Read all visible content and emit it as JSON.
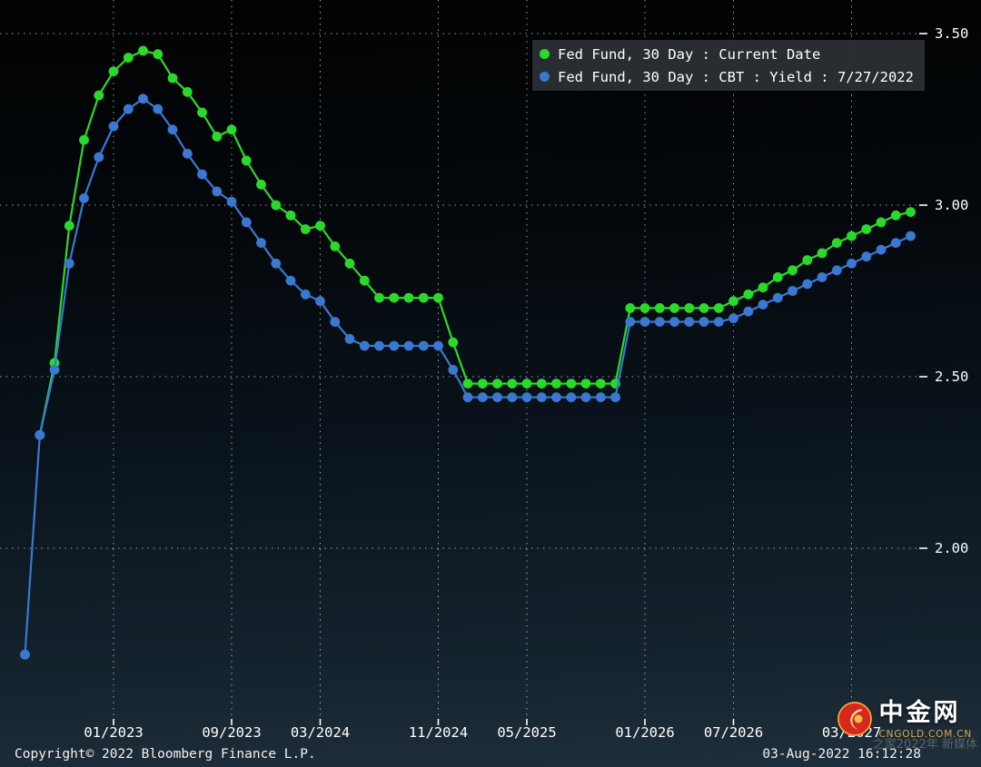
{
  "footer": {
    "copyright": "Copyright© 2022 Bloomberg Finance L.P.",
    "timestamp": "03-Aug-2022 16:12:28"
  },
  "watermark": {
    "name": "中金网",
    "domain": "CNGOLD.COM.CN",
    "tagline": "之家2022年 新媒体"
  },
  "chart_data": {
    "type": "line",
    "x_start": "07/2022",
    "x_months_per_point": 1,
    "x_ticks": [
      {
        "label": "01/2023",
        "offset": 6
      },
      {
        "label": "09/2023",
        "offset": 14
      },
      {
        "label": "03/2024",
        "offset": 20
      },
      {
        "label": "11/2024",
        "offset": 28
      },
      {
        "label": "05/2025",
        "offset": 34
      },
      {
        "label": "01/2026",
        "offset": 42
      },
      {
        "label": "07/2026",
        "offset": 48
      },
      {
        "label": "03/2027",
        "offset": 56
      }
    ],
    "y_ticks": [
      3.5,
      3.0,
      2.5,
      2.0
    ],
    "ylim": [
      1.5,
      3.6
    ],
    "grid": "dotted",
    "legend_position": "top-right",
    "series": [
      {
        "name": "Fed Fund, 30 Day : Current Date",
        "color": "#2bd92b",
        "start_offset": 1,
        "values": [
          2.33,
          2.54,
          2.94,
          3.19,
          3.32,
          3.39,
          3.43,
          3.45,
          3.44,
          3.37,
          3.33,
          3.27,
          3.2,
          3.22,
          3.13,
          3.06,
          3.0,
          2.97,
          2.93,
          2.94,
          2.88,
          2.83,
          2.78,
          2.73,
          2.73,
          2.73,
          2.73,
          2.73,
          2.6,
          2.48,
          2.48,
          2.48,
          2.48,
          2.48,
          2.48,
          2.48,
          2.48,
          2.48,
          2.48,
          2.48,
          2.7,
          2.7,
          2.7,
          2.7,
          2.7,
          2.7,
          2.7,
          2.72,
          2.74,
          2.76,
          2.79,
          2.81,
          2.84,
          2.86,
          2.89,
          2.91,
          2.93,
          2.95,
          2.97,
          2.98
        ]
      },
      {
        "name": "Fed Fund, 30 Day : CBT : Yield : 7/27/2022",
        "color": "#3a78d2",
        "start_offset": 0,
        "values": [
          1.69,
          2.33,
          2.52,
          2.83,
          3.02,
          3.14,
          3.23,
          3.28,
          3.31,
          3.28,
          3.22,
          3.15,
          3.09,
          3.04,
          3.01,
          2.95,
          2.89,
          2.83,
          2.78,
          2.74,
          2.72,
          2.66,
          2.61,
          2.59,
          2.59,
          2.59,
          2.59,
          2.59,
          2.59,
          2.52,
          2.44,
          2.44,
          2.44,
          2.44,
          2.44,
          2.44,
          2.44,
          2.44,
          2.44,
          2.44,
          2.44,
          2.66,
          2.66,
          2.66,
          2.66,
          2.66,
          2.66,
          2.66,
          2.67,
          2.69,
          2.71,
          2.73,
          2.75,
          2.77,
          2.79,
          2.81,
          2.83,
          2.85,
          2.87,
          2.89,
          2.91
        ]
      }
    ]
  }
}
